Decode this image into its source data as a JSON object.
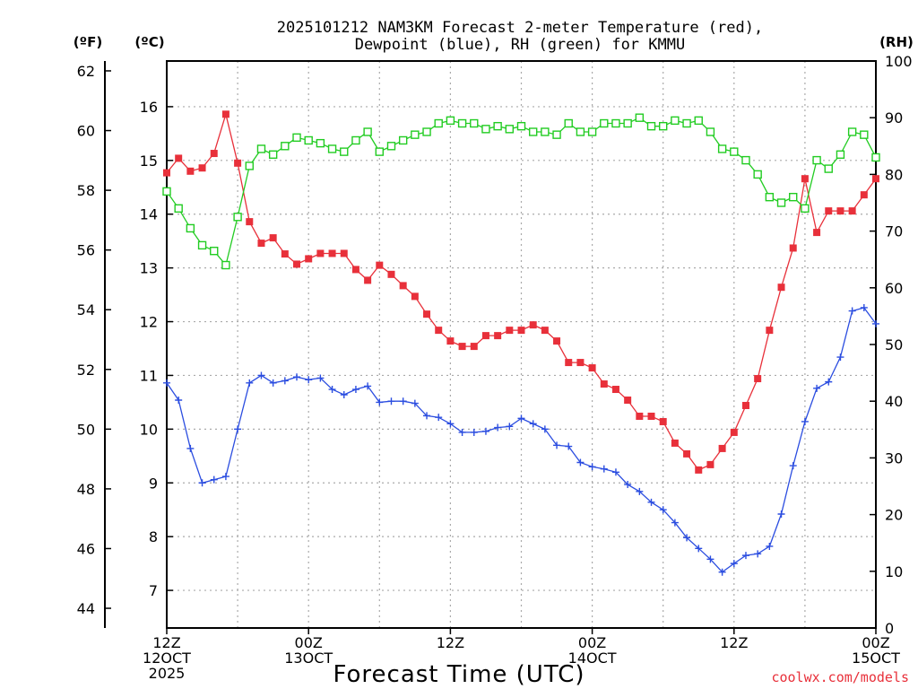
{
  "chart_data": {
    "type": "line",
    "title_line1": "2025101212 NAM3KM Forecast 2-meter Temperature (red),",
    "title_line2": "Dewpoint (blue), RH (green) for KMMU",
    "xlabel": "Forecast Time (UTC)",
    "credit": "coolwx.com/models",
    "axes": {
      "fahrenheit": {
        "unit_label": "(ºF)",
        "ticks": [
          44,
          46,
          48,
          50,
          52,
          54,
          56,
          58,
          60,
          62
        ]
      },
      "celsius": {
        "unit_label": "(ºC)",
        "ylim": [
          6.3,
          16.85
        ],
        "ticks": [
          7,
          8,
          9,
          10,
          11,
          12,
          13,
          14,
          15,
          16
        ]
      },
      "rh": {
        "unit_label": "(RH)",
        "ylim": [
          0,
          100
        ],
        "ticks": [
          0,
          10,
          20,
          30,
          40,
          50,
          60,
          70,
          80,
          90,
          100
        ]
      }
    },
    "x_range_hours": [
      0,
      60
    ],
    "x_ticks": [
      {
        "hour": 0,
        "lines": [
          "12Z",
          "12OCT",
          "2025"
        ]
      },
      {
        "hour": 12,
        "lines": [
          "00Z",
          "13OCT"
        ]
      },
      {
        "hour": 24,
        "lines": [
          "12Z"
        ]
      },
      {
        "hour": 36,
        "lines": [
          "00Z",
          "14OCT"
        ]
      },
      {
        "hour": 48,
        "lines": [
          "12Z"
        ]
      },
      {
        "hour": 60,
        "lines": [
          "00Z",
          "15OCT"
        ]
      }
    ],
    "series": [
      {
        "name": "Temperature",
        "axis": "celsius",
        "color": "#e8303a",
        "marker": "filled-square",
        "x": [
          0,
          1,
          2,
          3,
          4,
          5,
          6,
          7,
          8,
          9,
          10,
          11,
          12,
          13,
          14,
          15,
          16,
          17,
          18,
          19,
          20,
          21,
          22,
          23,
          24,
          25,
          26,
          27,
          28,
          29,
          30,
          31,
          32,
          33,
          34,
          35,
          36,
          37,
          38,
          39,
          40,
          41,
          42,
          43,
          44,
          45,
          46,
          47,
          48,
          49,
          50,
          51,
          52,
          53,
          54,
          55,
          56,
          57,
          58,
          59,
          60
        ],
        "values": [
          14.77,
          15.04,
          14.8,
          14.86,
          15.13,
          15.86,
          14.95,
          13.86,
          13.46,
          13.56,
          13.26,
          13.07,
          13.17,
          13.27,
          13.27,
          13.27,
          12.97,
          12.77,
          13.05,
          12.88,
          12.67,
          12.47,
          12.14,
          11.84,
          11.64,
          11.54,
          11.54,
          11.74,
          11.74,
          11.84,
          11.84,
          11.94,
          11.84,
          11.64,
          11.24,
          11.24,
          11.14,
          10.84,
          10.74,
          10.54,
          10.24,
          10.24,
          10.14,
          9.74,
          9.54,
          9.24,
          9.34,
          9.64,
          9.94,
          10.44,
          10.94,
          11.84,
          12.64,
          13.37,
          14.66,
          13.66,
          14.06,
          14.06,
          14.06,
          14.36,
          14.66
        ]
      },
      {
        "name": "Dewpoint",
        "axis": "celsius",
        "color": "#2b4de0",
        "marker": "plus",
        "x": [
          0,
          1,
          2,
          3,
          4,
          5,
          6,
          7,
          8,
          9,
          10,
          11,
          12,
          13,
          14,
          15,
          16,
          17,
          18,
          19,
          20,
          21,
          22,
          23,
          24,
          25,
          26,
          27,
          28,
          29,
          30,
          31,
          32,
          33,
          34,
          35,
          36,
          37,
          38,
          39,
          40,
          41,
          42,
          43,
          44,
          45,
          46,
          47,
          48,
          49,
          50,
          51,
          52,
          53,
          54,
          55,
          56,
          57,
          58,
          59,
          60
        ],
        "values": [
          10.86,
          10.54,
          9.64,
          9.0,
          9.06,
          9.12,
          10.0,
          10.86,
          11.0,
          10.86,
          10.9,
          10.97,
          10.92,
          10.95,
          10.74,
          10.64,
          10.74,
          10.8,
          10.5,
          10.52,
          10.52,
          10.48,
          10.25,
          10.22,
          10.1,
          9.94,
          9.94,
          9.96,
          10.03,
          10.05,
          10.2,
          10.1,
          10.0,
          9.7,
          9.68,
          9.38,
          9.3,
          9.26,
          9.2,
          8.97,
          8.84,
          8.64,
          8.5,
          8.26,
          7.98,
          7.78,
          7.58,
          7.34,
          7.5,
          7.65,
          7.68,
          7.82,
          8.42,
          9.32,
          10.14,
          10.76,
          10.88,
          11.34,
          12.2,
          12.26,
          11.96
        ]
      },
      {
        "name": "RH",
        "axis": "rh",
        "color": "#22cc22",
        "marker": "open-square",
        "x": [
          0,
          1,
          2,
          3,
          4,
          5,
          6,
          7,
          8,
          9,
          10,
          11,
          12,
          13,
          14,
          15,
          16,
          17,
          18,
          19,
          20,
          21,
          22,
          23,
          24,
          25,
          26,
          27,
          28,
          29,
          30,
          31,
          32,
          33,
          34,
          35,
          36,
          37,
          38,
          39,
          40,
          41,
          42,
          43,
          44,
          45,
          46,
          47,
          48,
          49,
          50,
          51,
          52,
          53,
          54,
          55,
          56,
          57,
          58,
          59,
          60
        ],
        "values": [
          77,
          74,
          70.5,
          67.5,
          66.5,
          64,
          72.5,
          81.5,
          84.5,
          83.5,
          85,
          86.5,
          86,
          85.5,
          84.5,
          84,
          86,
          87.5,
          84,
          85,
          86,
          87,
          87.5,
          89,
          89.5,
          89,
          89,
          88,
          88.5,
          88,
          88.5,
          87.5,
          87.5,
          87,
          89,
          87.5,
          87.5,
          89,
          89,
          89,
          90,
          88.5,
          88.5,
          89.5,
          89,
          89.5,
          87.5,
          84.5,
          84,
          82.5,
          80,
          76,
          75,
          76,
          74,
          82.5,
          81,
          83.5,
          87.5,
          87,
          83
        ]
      }
    ]
  }
}
